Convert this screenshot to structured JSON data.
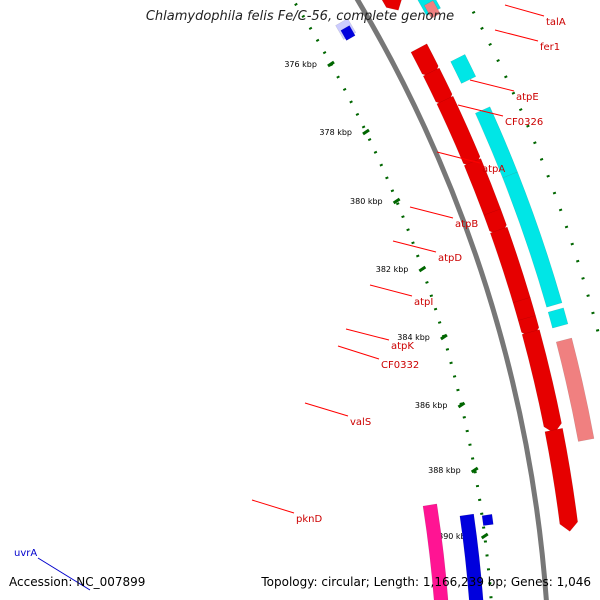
{
  "title": "Chlamydophila felis Fe/C-56, complete genome",
  "footer": {
    "accession": "Accession: NC_007899",
    "summary": "Topology: circular; Length: 1,166,239 bp; Genes: 1,046"
  },
  "colors": {
    "forward_gene": "#e60000",
    "forward_gene_light": "#f08080",
    "reverse_gene": "#00e6e6",
    "reverse_light": "#ccccff",
    "blue": "#0000dd",
    "magenta": "#ff1493",
    "label_red": "#cc0000",
    "label_blue": "#0000cc",
    "tick_green": "#006600",
    "backbone": "#777777"
  },
  "ticks": [
    "376 kbp",
    "378 kbp",
    "380 kbp",
    "382 kbp",
    "384 kbp",
    "386 kbp",
    "388 kbp",
    "390 kbp"
  ],
  "genes": [
    {
      "name": "talA",
      "color": "red"
    },
    {
      "name": "fer1",
      "color": "red"
    },
    {
      "name": "atpE",
      "color": "red"
    },
    {
      "name": "CF0326",
      "color": "red"
    },
    {
      "name": "atpA",
      "color": "red"
    },
    {
      "name": "atpB",
      "color": "red"
    },
    {
      "name": "atpD",
      "color": "red"
    },
    {
      "name": "atpI",
      "color": "red"
    },
    {
      "name": "atpK",
      "color": "red"
    },
    {
      "name": "CF0332",
      "color": "red"
    },
    {
      "name": "valS",
      "color": "red"
    },
    {
      "name": "pknD",
      "color": "red"
    },
    {
      "name": "uvrA",
      "color": "blue"
    }
  ]
}
